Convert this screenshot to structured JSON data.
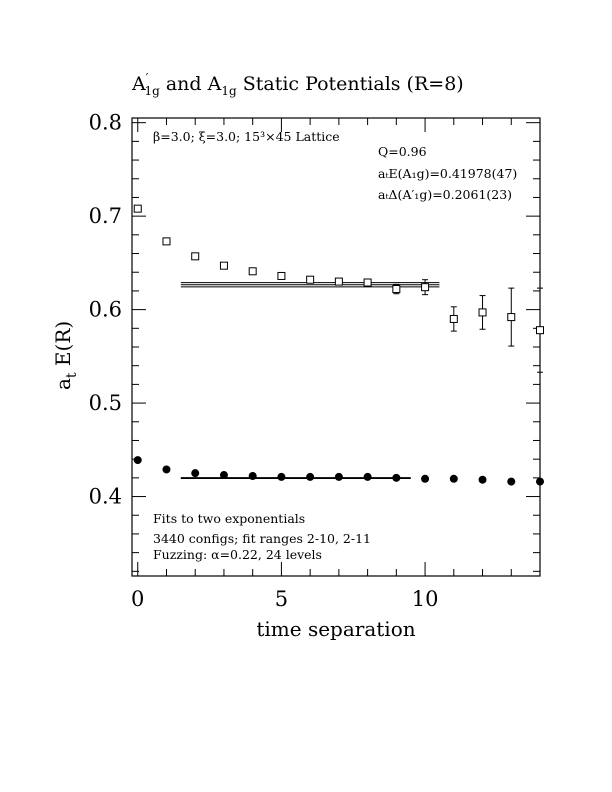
{
  "chart_data": {
    "type": "scatter",
    "title": {
      "main": "A′1g and A1g Static Potentials (R=8)",
      "sym1": "A",
      "sup1": "′",
      "sub1": "1g",
      "and": " and ",
      "sym2": "A",
      "sub2": "1g",
      "rest": " Static Potentials (R=8)"
    },
    "xlabel": "time separation",
    "ylabel": {
      "main": "a",
      "sub": "t",
      "rest": " E(R)"
    },
    "xlim": [
      -0.2,
      14.0
    ],
    "ylim": [
      0.315,
      0.805
    ],
    "x_ticks": [
      0,
      5,
      10
    ],
    "x_tick_labels": [
      "0",
      "5",
      "10"
    ],
    "y_ticks": [
      0.4,
      0.5,
      0.6,
      0.7,
      0.8
    ],
    "y_tick_labels": [
      "0.4",
      "0.5",
      "0.6",
      "0.7",
      "0.8"
    ],
    "annotations": {
      "lattice": "β=3.0; ξ=3.0; 15³×45 Lattice",
      "q": "Q=0.96",
      "e_label": "aₜE(A₁g)=0.41978(47)",
      "d_label": "aₜΔ(A′₁g)=0.2061(23)",
      "fits": "Fits to two exponentials",
      "configs": "3440 configs; fit ranges 2-10, 2-11",
      "fuzz": "Fuzzing: α=0.22, 24 levels"
    },
    "series": [
      {
        "marker": "open-square",
        "x": [
          0,
          1,
          2,
          3,
          4,
          5,
          6,
          7,
          8,
          9,
          10,
          11,
          12,
          13,
          14
        ],
        "y": [
          0.708,
          0.673,
          0.657,
          0.647,
          0.641,
          0.636,
          0.632,
          0.63,
          0.629,
          0.622,
          0.624,
          0.59,
          0.597,
          0.592,
          0.578
        ],
        "err": [
          0.001,
          0.001,
          0.001,
          0.001,
          0.001,
          0.001,
          0.002,
          0.003,
          0.003,
          0.005,
          0.008,
          0.013,
          0.018,
          0.031,
          0.045
        ]
      },
      {
        "marker": "filled-circle",
        "x": [
          0,
          1,
          2,
          3,
          4,
          5,
          6,
          7,
          8,
          9,
          10,
          11,
          12,
          13,
          14
        ],
        "y": [
          0.439,
          0.429,
          0.425,
          0.423,
          0.422,
          0.421,
          0.421,
          0.421,
          0.421,
          0.42,
          0.419,
          0.419,
          0.418,
          0.416,
          0.416
        ],
        "err": [
          0.0005,
          0.0005,
          0.0005,
          0.0005,
          0.0005,
          0.0005,
          0.0005,
          0.0005,
          0.0005,
          0.0005,
          0.0005,
          0.0005,
          0.0005,
          0.0005,
          0.0005
        ]
      }
    ],
    "fits": [
      {
        "x_range": [
          1.5,
          10.5
        ],
        "center": 0.6266,
        "band": 0.0023
      },
      {
        "x_range": [
          1.5,
          9.5
        ],
        "center": 0.41978,
        "band": 0.00047
      }
    ]
  }
}
